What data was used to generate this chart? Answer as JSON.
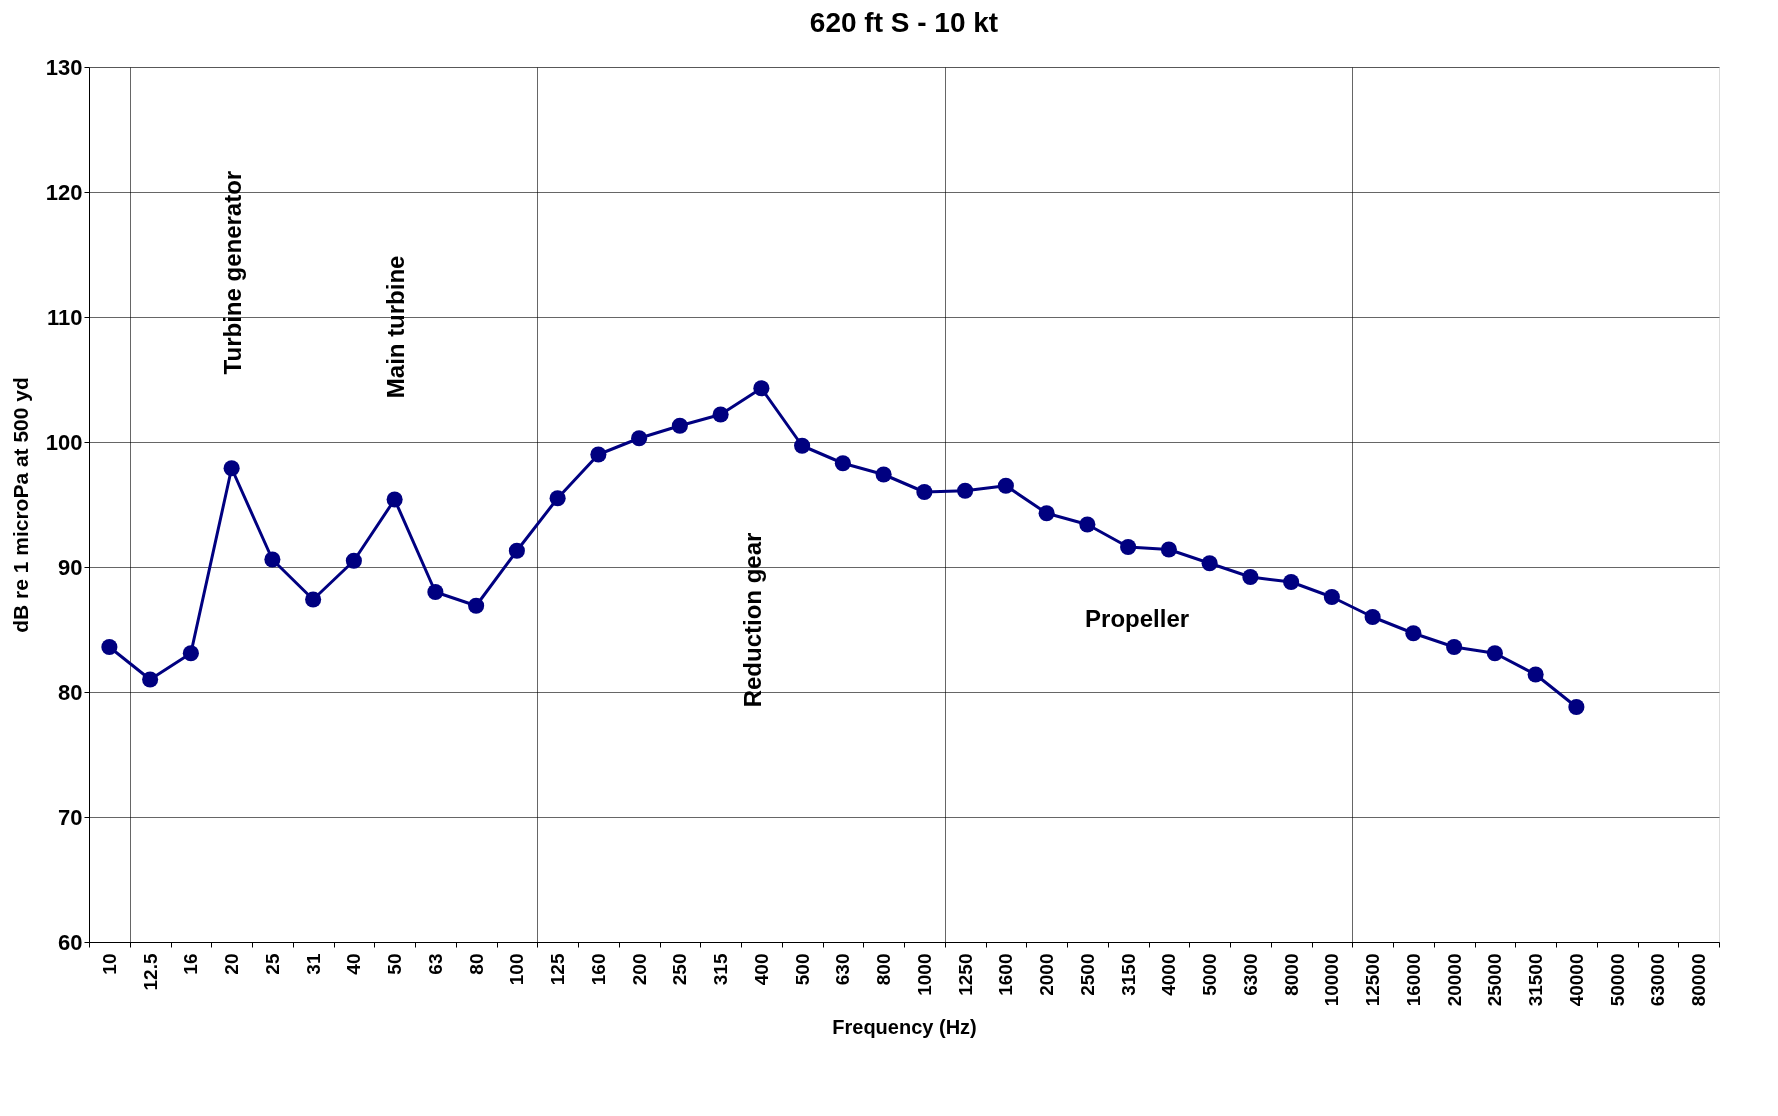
{
  "chart_data": {
    "type": "line",
    "title": "620 ft S - 10 kt",
    "xlabel": "Frequency (Hz)",
    "ylabel": "dB re 1 microPa at 500 yd",
    "categories": [
      "10",
      "12.5",
      "16",
      "20",
      "25",
      "31",
      "40",
      "50",
      "63",
      "80",
      "100",
      "125",
      "160",
      "200",
      "250",
      "315",
      "400",
      "500",
      "630",
      "800",
      "1000",
      "1250",
      "1600",
      "2000",
      "2500",
      "3150",
      "4000",
      "5000",
      "6300",
      "8000",
      "10000",
      "12500",
      "16000",
      "20000",
      "25000",
      "31500",
      "40000",
      "50000",
      "63000",
      "80000"
    ],
    "series": [
      {
        "color": "#000080",
        "values": [
          83.6,
          81.0,
          83.1,
          97.9,
          90.6,
          87.4,
          90.5,
          95.4,
          88.0,
          86.9,
          91.3,
          95.5,
          99.0,
          100.3,
          101.3,
          102.2,
          104.3,
          99.7,
          98.3,
          97.4,
          96.0,
          96.1,
          96.5,
          94.3,
          93.4,
          91.6,
          91.4,
          90.3,
          89.2,
          88.8,
          87.6,
          86.0,
          84.7,
          83.6,
          83.1,
          81.4,
          78.8,
          null,
          null,
          null
        ]
      }
    ],
    "ylim": [
      60,
      130
    ],
    "yticks": [
      60,
      70,
      80,
      90,
      100,
      110,
      120,
      130
    ],
    "grid": true,
    "marker": "circle",
    "line_style": "solid",
    "legend": false,
    "annotations": [
      "Turbine generator",
      "Main turbine",
      "Reduction gear",
      "Propeller"
    ]
  }
}
